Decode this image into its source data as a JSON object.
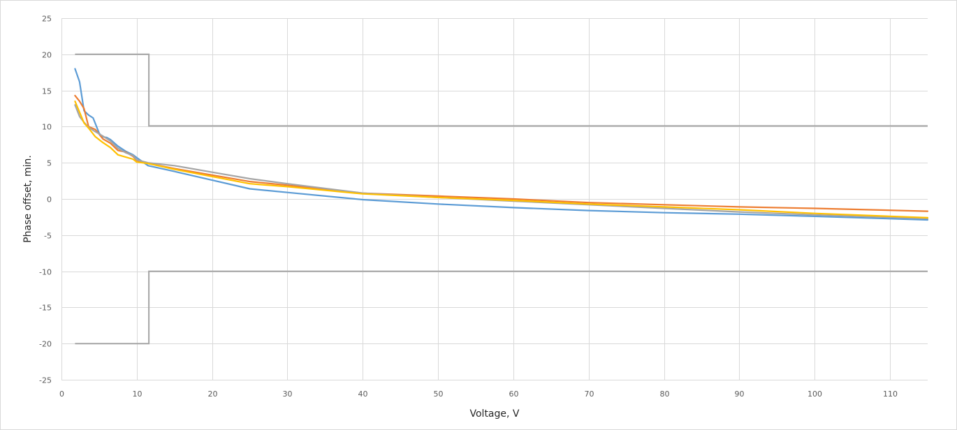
{
  "chart_data": {
    "type": "line",
    "title": "",
    "xlabel": "Voltage, V",
    "ylabel": "Phase offset, min.",
    "xlim": [
      0,
      115
    ],
    "ylim": [
      -25,
      25
    ],
    "x_ticks": [
      0,
      10,
      20,
      30,
      40,
      50,
      60,
      70,
      80,
      90,
      100,
      110
    ],
    "y_ticks": [
      25,
      20,
      15,
      10,
      5,
      0,
      -5,
      -10,
      -15,
      -20,
      -25
    ],
    "grid": true,
    "legend": "none",
    "colors": {
      "grid": "#d9d9d9",
      "tick_text": "#595959",
      "limit": "#a5a5a5",
      "blue": "#5b9bd5",
      "orange": "#ed7d31",
      "gray": "#a5a5a5",
      "yellow": "#ffc000"
    },
    "limits": [
      {
        "x": [
          1.8,
          11.6,
          11.6,
          115
        ],
        "y": [
          20,
          20,
          10.1,
          10.1
        ]
      },
      {
        "x": [
          1.8,
          11.6,
          11.6,
          115
        ],
        "y": [
          -20,
          -20,
          -10,
          -10
        ]
      }
    ],
    "series": [
      {
        "color": "blue",
        "x": [
          1.8,
          2.4,
          3,
          3.6,
          4.2,
          5,
          5.4,
          6,
          6.5,
          7.5,
          8.5,
          9.5,
          10,
          11.5,
          15,
          20,
          25,
          30,
          40,
          50,
          60,
          70,
          80,
          90,
          100,
          115
        ],
        "y": [
          18,
          16.2,
          12.2,
          11.6,
          11.2,
          9.1,
          8.6,
          8.5,
          8.2,
          7.3,
          6.6,
          6.1,
          5.7,
          4.6,
          3.8,
          2.6,
          1.4,
          0.9,
          -0.1,
          -0.7,
          -1.2,
          -1.6,
          -1.9,
          -2.1,
          -2.4,
          -2.9
        ]
      },
      {
        "color": "orange",
        "x": [
          1.8,
          2.4,
          3,
          3.6,
          4.5,
          5.5,
          6.5,
          7.5,
          8.5,
          9.5,
          10,
          11.5,
          15,
          20,
          25,
          30,
          40,
          50,
          60,
          70,
          80,
          90,
          100,
          115
        ],
        "y": [
          14.3,
          13.5,
          12.5,
          10,
          9.6,
          8.3,
          7.7,
          6.7,
          6.5,
          5.9,
          5.3,
          4.9,
          4.2,
          3.3,
          2.4,
          1.9,
          0.8,
          0.4,
          0,
          -0.5,
          -0.8,
          -1.1,
          -1.3,
          -1.7
        ]
      },
      {
        "color": "gray",
        "x": [
          1.8,
          2.4,
          3,
          3.6,
          4.5,
          5.5,
          6.5,
          7.5,
          8.5,
          9.5,
          10,
          11.5,
          15,
          20,
          25,
          30,
          40,
          50,
          60,
          70,
          80,
          90,
          100,
          115
        ],
        "y": [
          13,
          11.4,
          10.6,
          9.9,
          9.3,
          8.7,
          8,
          7,
          6.4,
          6,
          5.4,
          5,
          4.6,
          3.7,
          2.8,
          2.1,
          0.8,
          0.2,
          -0.3,
          -0.8,
          -1.3,
          -1.8,
          -2.2,
          -2.7
        ]
      },
      {
        "color": "yellow",
        "x": [
          1.8,
          2.4,
          3,
          3.6,
          4.5,
          5.5,
          6.5,
          7.5,
          8.5,
          9.5,
          10,
          11.5,
          15,
          20,
          25,
          30,
          40,
          50,
          60,
          70,
          80,
          90,
          100,
          115
        ],
        "y": [
          13.5,
          12,
          10.5,
          9.8,
          8.6,
          7.8,
          7.1,
          6.1,
          5.8,
          5.5,
          5.1,
          4.9,
          4.1,
          3.1,
          2.1,
          1.7,
          0.7,
          0.2,
          -0.2,
          -0.7,
          -1.1,
          -1.5,
          -2,
          -2.6
        ]
      }
    ]
  }
}
